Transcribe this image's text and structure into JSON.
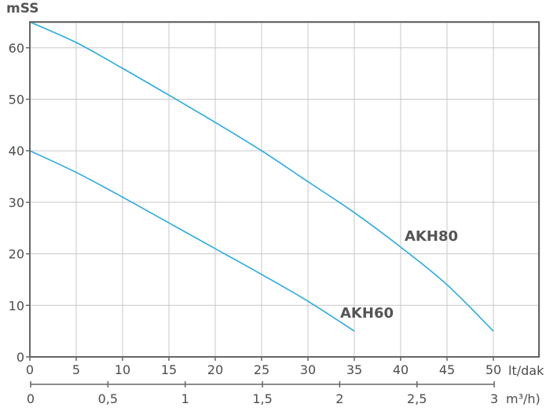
{
  "chart_data": {
    "type": "line",
    "ylabel": "mSS",
    "xlabel": "lt/dak",
    "x2label": "m³/h)",
    "ylim": [
      0,
      65
    ],
    "xlim": [
      0,
      55
    ],
    "x2lim": [
      0,
      3.3
    ],
    "grid": true,
    "y_ticks": [
      0,
      10,
      20,
      30,
      40,
      50,
      60
    ],
    "x_ticks": [
      0,
      5,
      10,
      15,
      20,
      25,
      30,
      35,
      40,
      45,
      50
    ],
    "x2_ticks": [
      {
        "value": 0,
        "label": "0"
      },
      {
        "value": 0.5,
        "label": "0,5"
      },
      {
        "value": 1,
        "label": "1"
      },
      {
        "value": 1.5,
        "label": "1,5"
      },
      {
        "value": 2,
        "label": "2"
      },
      {
        "value": 2.5,
        "label": "2,5"
      },
      {
        "value": 3,
        "label": "3"
      }
    ],
    "series": [
      {
        "name": "AKH80",
        "color": "#29abe2",
        "x": [
          0,
          5,
          10,
          15,
          20,
          25,
          30,
          35,
          40,
          45,
          50
        ],
        "y": [
          65,
          61,
          56,
          50.8,
          45.5,
          40,
          34,
          28,
          21.3,
          14,
          5
        ]
      },
      {
        "name": "AKH60",
        "color": "#29abe2",
        "x": [
          0,
          5,
          10,
          15,
          20,
          25,
          30,
          35
        ],
        "y": [
          40,
          35.8,
          31,
          26,
          21,
          16,
          10.8,
          5
        ]
      }
    ]
  }
}
